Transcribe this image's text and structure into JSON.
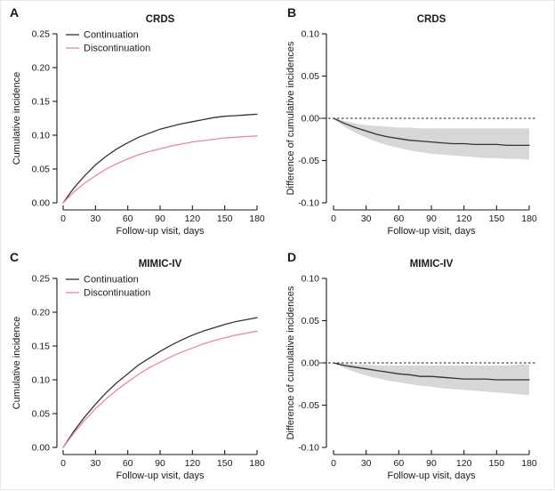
{
  "figure": {
    "background": "#ffffff",
    "panels": [
      "A",
      "B",
      "C",
      "D"
    ]
  },
  "colors": {
    "continuation": "#333333",
    "discontinuation": "#ee8896",
    "band": "#d7d7d7",
    "axis": "#1a1a1a",
    "text": "#1a1a1a"
  },
  "chart_data": [
    {
      "panel_label": "A",
      "type": "line",
      "title": "CRDS",
      "xlabel": "Follow-up visit, days",
      "ylabel": "Cumulative incidence",
      "xlim": [
        0,
        180
      ],
      "ylim": [
        0,
        0.25
      ],
      "xticks": [
        0,
        30,
        60,
        90,
        120,
        150,
        180
      ],
      "yticks": [
        0,
        0.05,
        0.1,
        0.15,
        0.2,
        0.25
      ],
      "grid": false,
      "legend": {
        "show": true,
        "position": "top-left"
      },
      "x": [
        0,
        10,
        20,
        30,
        40,
        50,
        60,
        70,
        80,
        90,
        100,
        110,
        120,
        130,
        140,
        150,
        160,
        170,
        180
      ],
      "series": [
        {
          "name": "Continuation",
          "color_key": "continuation",
          "values": [
            0,
            0.022,
            0.04,
            0.056,
            0.069,
            0.08,
            0.089,
            0.097,
            0.103,
            0.109,
            0.113,
            0.117,
            0.12,
            0.123,
            0.126,
            0.128,
            0.129,
            0.13,
            0.131
          ]
        },
        {
          "name": "Discontinuation",
          "color_key": "discontinuation",
          "values": [
            0,
            0.016,
            0.029,
            0.04,
            0.05,
            0.058,
            0.065,
            0.071,
            0.076,
            0.08,
            0.084,
            0.087,
            0.09,
            0.092,
            0.094,
            0.096,
            0.097,
            0.098,
            0.099
          ]
        }
      ],
      "zero_line": false
    },
    {
      "panel_label": "B",
      "type": "line",
      "title": "CRDS",
      "xlabel": "Follow-up visit, days",
      "ylabel": "Difference of cumulative incidences",
      "xlim": [
        0,
        180
      ],
      "ylim": [
        -0.1,
        0.1
      ],
      "xticks": [
        0,
        30,
        60,
        90,
        120,
        150,
        180
      ],
      "yticks": [
        -0.1,
        -0.05,
        0,
        0.05,
        0.1
      ],
      "grid": false,
      "legend": {
        "show": false
      },
      "x": [
        0,
        10,
        20,
        30,
        40,
        50,
        60,
        70,
        80,
        90,
        100,
        110,
        120,
        130,
        140,
        150,
        160,
        170,
        180
      ],
      "series": [
        {
          "name": "Difference",
          "color_key": "continuation",
          "values": [
            0,
            -0.006,
            -0.011,
            -0.015,
            -0.019,
            -0.022,
            -0.024,
            -0.026,
            -0.027,
            -0.028,
            -0.029,
            -0.03,
            -0.03,
            -0.031,
            -0.031,
            -0.031,
            -0.032,
            -0.032,
            -0.032
          ]
        }
      ],
      "band": {
        "upper": [
          0,
          -0.003,
          -0.006,
          -0.008,
          -0.009,
          -0.01,
          -0.011,
          -0.011,
          -0.012,
          -0.012,
          -0.012,
          -0.012,
          -0.012,
          -0.012,
          -0.012,
          -0.012,
          -0.012,
          -0.012,
          -0.012
        ],
        "lower": [
          0,
          -0.01,
          -0.017,
          -0.023,
          -0.028,
          -0.032,
          -0.035,
          -0.038,
          -0.04,
          -0.042,
          -0.043,
          -0.044,
          -0.045,
          -0.046,
          -0.047,
          -0.047,
          -0.048,
          -0.048,
          -0.049
        ]
      },
      "zero_line": true
    },
    {
      "panel_label": "C",
      "type": "line",
      "title": "MIMIC-IV",
      "xlabel": "Follow-up visit, days",
      "ylabel": "Cumulative incidence",
      "xlim": [
        0,
        180
      ],
      "ylim": [
        0,
        0.25
      ],
      "xticks": [
        0,
        30,
        60,
        90,
        120,
        150,
        180
      ],
      "yticks": [
        0,
        0.05,
        0.1,
        0.15,
        0.2,
        0.25
      ],
      "grid": false,
      "legend": {
        "show": true,
        "position": "top-left"
      },
      "x": [
        0,
        10,
        20,
        30,
        40,
        50,
        60,
        70,
        80,
        90,
        100,
        110,
        120,
        130,
        140,
        150,
        160,
        170,
        180
      ],
      "series": [
        {
          "name": "Continuation",
          "color_key": "continuation",
          "values": [
            0,
            0.024,
            0.045,
            0.064,
            0.081,
            0.096,
            0.109,
            0.122,
            0.132,
            0.142,
            0.151,
            0.159,
            0.166,
            0.172,
            0.177,
            0.182,
            0.186,
            0.189,
            0.192
          ]
        },
        {
          "name": "Discontinuation",
          "color_key": "discontinuation",
          "values": [
            0,
            0.021,
            0.04,
            0.057,
            0.072,
            0.085,
            0.097,
            0.108,
            0.118,
            0.126,
            0.134,
            0.141,
            0.147,
            0.153,
            0.158,
            0.162,
            0.166,
            0.169,
            0.172
          ]
        }
      ],
      "zero_line": false
    },
    {
      "panel_label": "D",
      "type": "line",
      "title": "MIMIC-IV",
      "xlabel": "Follow-up visit, days",
      "ylabel": "Difference of cumulative incidences",
      "xlim": [
        0,
        180
      ],
      "ylim": [
        -0.1,
        0.1
      ],
      "xticks": [
        0,
        30,
        60,
        90,
        120,
        150,
        180
      ],
      "yticks": [
        -0.1,
        -0.05,
        0,
        0.05,
        0.1
      ],
      "grid": false,
      "legend": {
        "show": false
      },
      "x": [
        0,
        10,
        20,
        30,
        40,
        50,
        60,
        70,
        80,
        90,
        100,
        110,
        120,
        130,
        140,
        150,
        160,
        170,
        180
      ],
      "series": [
        {
          "name": "Difference",
          "color_key": "continuation",
          "values": [
            0,
            -0.003,
            -0.005,
            -0.007,
            -0.009,
            -0.011,
            -0.013,
            -0.014,
            -0.016,
            -0.016,
            -0.017,
            -0.018,
            -0.019,
            -0.019,
            -0.019,
            -0.02,
            -0.02,
            -0.02,
            -0.02
          ]
        }
      ],
      "band": {
        "upper": [
          0,
          -0.001,
          -0.002,
          -0.002,
          -0.003,
          -0.003,
          -0.003,
          -0.003,
          -0.003,
          -0.003,
          -0.003,
          -0.003,
          -0.003,
          -0.003,
          -0.003,
          -0.003,
          -0.003,
          -0.002,
          -0.002
        ],
        "lower": [
          0,
          -0.006,
          -0.011,
          -0.015,
          -0.018,
          -0.021,
          -0.023,
          -0.025,
          -0.027,
          -0.028,
          -0.03,
          -0.031,
          -0.032,
          -0.033,
          -0.034,
          -0.035,
          -0.036,
          -0.037,
          -0.038
        ]
      },
      "zero_line": true
    }
  ]
}
